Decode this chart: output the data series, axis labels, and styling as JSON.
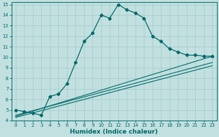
{
  "xlabel": "Humidex (Indice chaleur)",
  "bg_color": "#c2e0e0",
  "grid_color": "#a8cccc",
  "line_color": "#006868",
  "xlim": [
    -0.5,
    23.5
  ],
  "ylim": [
    4,
    15.2
  ],
  "xticks": [
    0,
    1,
    2,
    3,
    4,
    5,
    6,
    7,
    8,
    9,
    10,
    11,
    12,
    13,
    14,
    15,
    16,
    17,
    18,
    19,
    20,
    21,
    22,
    23
  ],
  "yticks": [
    4,
    5,
    6,
    7,
    8,
    9,
    10,
    11,
    12,
    13,
    14,
    15
  ],
  "curve1_x": [
    0,
    1,
    2,
    3,
    4,
    5,
    6,
    7,
    8,
    9,
    10,
    11,
    12,
    13,
    14,
    15,
    16,
    17,
    18,
    19,
    20,
    21,
    22,
    23
  ],
  "curve1_y": [
    5.0,
    4.85,
    4.7,
    4.5,
    6.3,
    6.5,
    7.5,
    9.5,
    11.5,
    12.3,
    14.0,
    13.7,
    15.0,
    14.5,
    14.2,
    13.7,
    12.0,
    11.5,
    10.8,
    10.5,
    10.2,
    10.2,
    10.1,
    10.1
  ],
  "curve2_x": [
    0,
    23
  ],
  "curve2_y": [
    4.5,
    9.5
  ],
  "curve3_x": [
    0,
    23
  ],
  "curve3_y": [
    4.4,
    10.1
  ],
  "curve4_x": [
    0,
    23
  ],
  "curve4_y": [
    4.3,
    9.2
  ],
  "tick_fontsize": 5.0,
  "xlabel_fontsize": 6.5,
  "marker_size": 2.2
}
